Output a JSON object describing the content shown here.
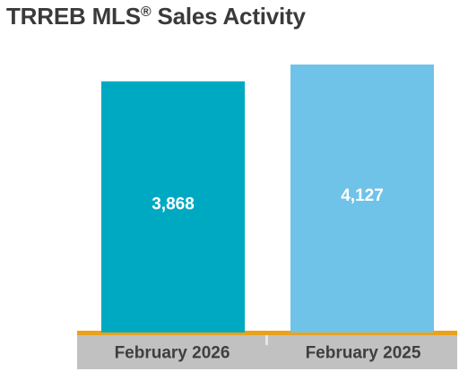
{
  "chart_data": {
    "type": "bar",
    "title_main": "TRREB MLS",
    "title_reg": "®",
    "title_rest": " Sales Activity",
    "categories": [
      "February 2026",
      "February 2025"
    ],
    "values": [
      3868,
      4127
    ],
    "value_labels": [
      "3,868",
      "4,127"
    ],
    "ylim": [
      0,
      4127
    ],
    "colors": [
      "#00a9c2",
      "#70c3e8"
    ],
    "axis_color": "#eaa21c",
    "label_band_color": "#c1c1c1",
    "grid": false,
    "legend": "none"
  }
}
